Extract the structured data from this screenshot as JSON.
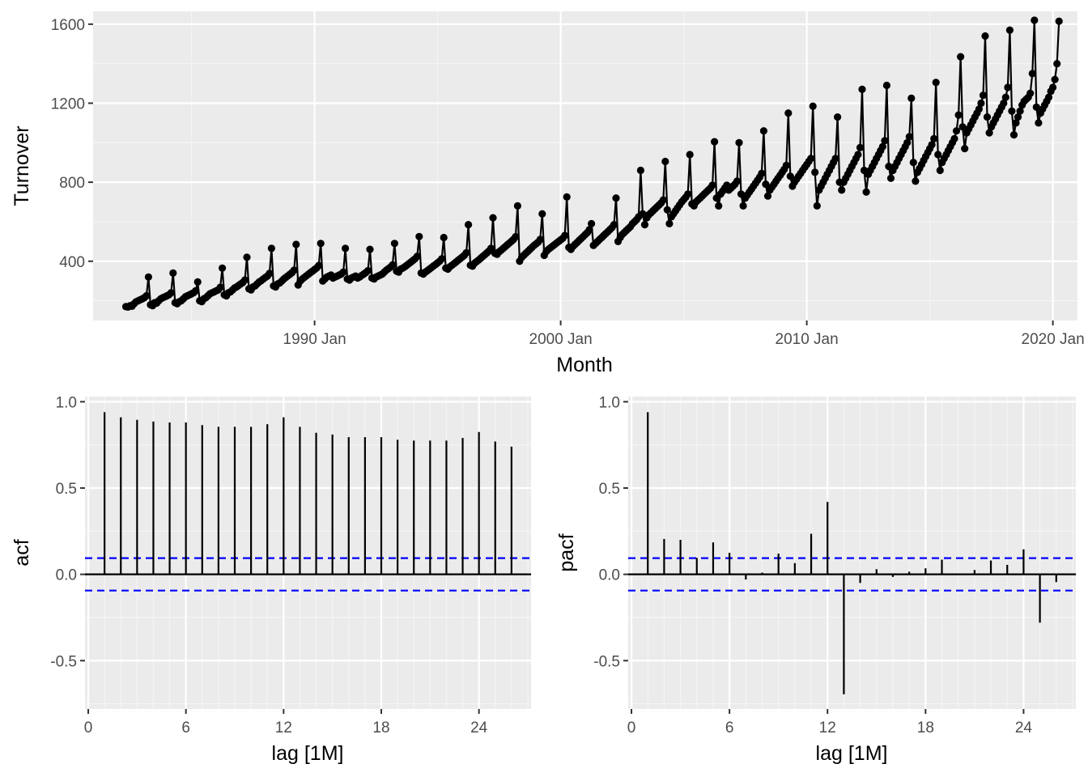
{
  "chart_data": [
    {
      "type": "line",
      "xlabel": "Month",
      "ylabel": "Turnover",
      "x_tick_labels": [
        "1990 Jan",
        "2000 Jan",
        "2010 Jan",
        "2020 Jan"
      ],
      "x_tick_years": [
        1990,
        2000,
        2010,
        2020
      ],
      "y_ticks": [
        400,
        800,
        1200,
        1600
      ],
      "xlim": [
        1981.0,
        2021.0
      ],
      "ylim": [
        100,
        1665
      ],
      "grid": true,
      "series": [
        {
          "start_year": 1982.333,
          "step_months": 1,
          "values": [
            170,
            168,
            175,
            172,
            185,
            195,
            200,
            205,
            210,
            215,
            225,
            320,
            180,
            175,
            190,
            188,
            200,
            210,
            215,
            220,
            225,
            230,
            240,
            340,
            190,
            185,
            195,
            200,
            210,
            220,
            225,
            230,
            235,
            240,
            250,
            295,
            200,
            195,
            210,
            215,
            225,
            235,
            240,
            245,
            250,
            255,
            268,
            365,
            230,
            225,
            240,
            245,
            255,
            265,
            270,
            278,
            285,
            292,
            305,
            420,
            260,
            255,
            270,
            275,
            285,
            295,
            302,
            310,
            318,
            325,
            338,
            465,
            275,
            270,
            285,
            290,
            300,
            310,
            318,
            326,
            334,
            342,
            355,
            485,
            280,
            300,
            310,
            318,
            326,
            334,
            342,
            350,
            358,
            366,
            378,
            490,
            300,
            310,
            320,
            325,
            330,
            315,
            320,
            325,
            330,
            335,
            345,
            465,
            310,
            305,
            315,
            320,
            325,
            315,
            320,
            328,
            335,
            342,
            352,
            460,
            315,
            310,
            320,
            325,
            330,
            335,
            345,
            355,
            362,
            370,
            382,
            490,
            350,
            345,
            360,
            365,
            372,
            380,
            388,
            396,
            404,
            412,
            425,
            525,
            340,
            335,
            345,
            352,
            360,
            368,
            376,
            384,
            392,
            400,
            412,
            520,
            365,
            360,
            372,
            380,
            388,
            396,
            405,
            413,
            421,
            430,
            443,
            585,
            380,
            375,
            390,
            398,
            406,
            415,
            424,
            433,
            442,
            451,
            465,
            620,
            440,
            435,
            448,
            456,
            465,
            474,
            483,
            492,
            501,
            510,
            524,
            680,
            400,
            420,
            430,
            440,
            450,
            460,
            470,
            480,
            488,
            496,
            510,
            640,
            430,
            450,
            460,
            468,
            476,
            484,
            492,
            500,
            508,
            516,
            530,
            725,
            470,
            460,
            475,
            485,
            495,
            505,
            515,
            525,
            535,
            545,
            560,
            590,
            480,
            490,
            500,
            510,
            520,
            530,
            540,
            550,
            560,
            570,
            585,
            720,
            500,
            520,
            535,
            545,
            555,
            565,
            575,
            590,
            600,
            610,
            625,
            860,
            640,
            585,
            620,
            635,
            645,
            655,
            665,
            675,
            685,
            695,
            710,
            905,
            660,
            590,
            625,
            640,
            655,
            670,
            685,
            700,
            712,
            724,
            740,
            940,
            690,
            680,
            700,
            710,
            720,
            730,
            740,
            750,
            760,
            770,
            785,
            1005,
            720,
            680,
            740,
            755,
            770,
            785,
            760,
            770,
            780,
            790,
            805,
            1000,
            740,
            680,
            720,
            735,
            750,
            765,
            780,
            795,
            810,
            825,
            845,
            1060,
            790,
            730,
            760,
            775,
            790,
            805,
            820,
            835,
            850,
            865,
            885,
            1150,
            830,
            780,
            800,
            815,
            830,
            845,
            860,
            875,
            890,
            905,
            920,
            1185,
            850,
            680,
            760,
            780,
            800,
            820,
            840,
            860,
            880,
            900,
            920,
            1130,
            800,
            760,
            800,
            820,
            840,
            860,
            880,
            900,
            920,
            940,
            975,
            1270,
            860,
            750,
            840,
            860,
            880,
            900,
            920,
            940,
            960,
            980,
            1010,
            1290,
            880,
            820,
            860,
            880,
            900,
            920,
            940,
            960,
            980,
            1000,
            1030,
            1225,
            900,
            805,
            850,
            870,
            890,
            910,
            930,
            950,
            970,
            990,
            1020,
            1305,
            940,
            860,
            900,
            920,
            940,
            960,
            980,
            1000,
            1020,
            1060,
            1140,
            1435,
            1080,
            970,
            1050,
            1070,
            1090,
            1110,
            1130,
            1150,
            1170,
            1200,
            1240,
            1540,
            1130,
            1050,
            1080,
            1100,
            1120,
            1140,
            1160,
            1180,
            1200,
            1230,
            1280,
            1570,
            1160,
            1040,
            1100,
            1130,
            1160,
            1190,
            1210,
            1220,
            1230,
            1250,
            1350,
            1620,
            1180,
            1100,
            1150,
            1170,
            1190,
            1210,
            1230,
            1260,
            1280,
            1320,
            1400,
            1615
          ]
        }
      ]
    },
    {
      "type": "bar",
      "xlabel": "lag [1M]",
      "ylabel": "acf",
      "x_ticks": [
        0,
        6,
        12,
        18,
        24
      ],
      "y_ticks": [
        -0.5,
        0.0,
        0.5,
        1.0
      ],
      "xlim": [
        -0.2,
        27.2
      ],
      "ylim": [
        -0.78,
        1.03
      ],
      "conf_limit": 0.094,
      "lags": [
        1,
        2,
        3,
        4,
        5,
        6,
        7,
        8,
        9,
        10,
        11,
        12,
        13,
        14,
        15,
        16,
        17,
        18,
        19,
        20,
        21,
        22,
        23,
        24,
        25,
        26
      ],
      "values": [
        0.94,
        0.91,
        0.895,
        0.885,
        0.88,
        0.88,
        0.865,
        0.855,
        0.855,
        0.855,
        0.87,
        0.91,
        0.855,
        0.82,
        0.81,
        0.795,
        0.795,
        0.795,
        0.78,
        0.775,
        0.775,
        0.775,
        0.79,
        0.825,
        0.77,
        0.74
      ]
    },
    {
      "type": "bar",
      "xlabel": "lag [1M]",
      "ylabel": "pacf",
      "x_ticks": [
        0,
        6,
        12,
        18,
        24
      ],
      "y_ticks": [
        -0.5,
        0.0,
        0.5,
        1.0
      ],
      "xlim": [
        -0.2,
        27.2
      ],
      "ylim": [
        -0.78,
        1.03
      ],
      "conf_limit": 0.094,
      "lags": [
        1,
        2,
        3,
        4,
        5,
        6,
        7,
        8,
        9,
        10,
        11,
        12,
        13,
        14,
        15,
        16,
        17,
        18,
        19,
        20,
        21,
        22,
        23,
        24,
        25,
        26
      ],
      "values": [
        0.94,
        0.205,
        0.2,
        0.095,
        0.185,
        0.125,
        -0.03,
        0.01,
        0.12,
        0.065,
        0.235,
        0.42,
        -0.695,
        -0.05,
        0.03,
        -0.015,
        0.015,
        0.035,
        0.085,
        0.0,
        0.025,
        0.08,
        0.055,
        0.145,
        -0.28,
        -0.045
      ]
    }
  ],
  "colors": {
    "panel": "#ebebeb",
    "grid_major": "#ffffff",
    "grid_minor": "#f5f5f5",
    "line": "#000000",
    "conf": "#0000ff"
  }
}
